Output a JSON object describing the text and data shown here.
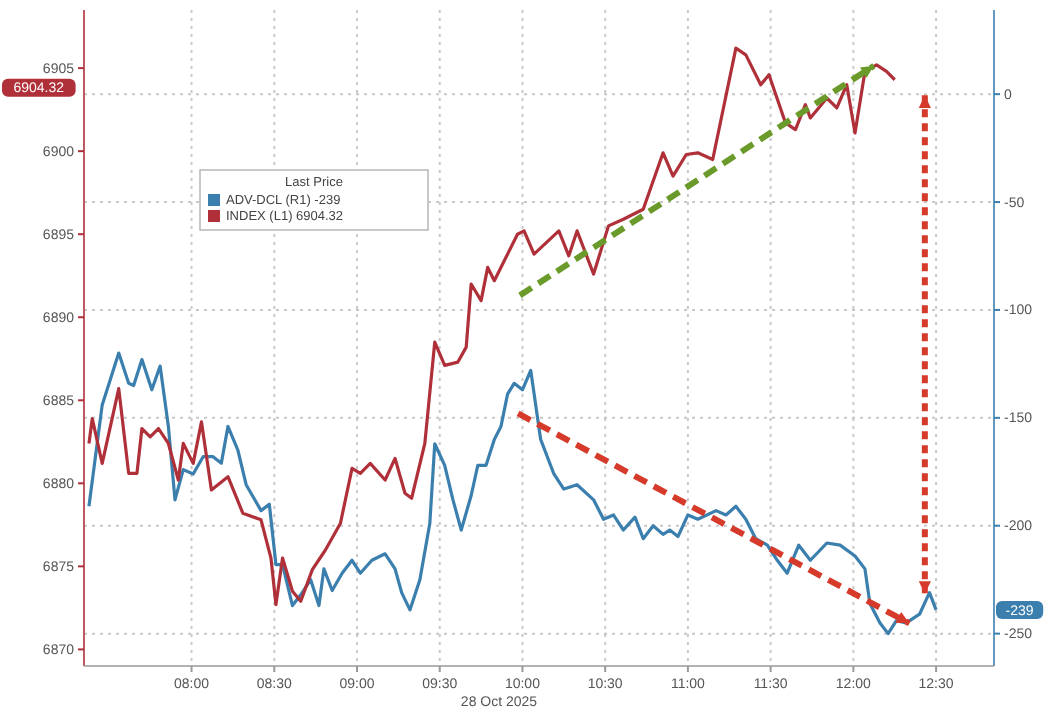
{
  "chart_data": {
    "type": "line",
    "xlabel": "28 Oct 2025",
    "legend_title": "Last Price",
    "legend": "top left",
    "grid": true,
    "xlim": [
      7.35,
      12.85
    ],
    "xticks": [
      {
        "value": 8,
        "label": "08:00"
      },
      {
        "value": 8.5,
        "label": "08:30"
      },
      {
        "value": 9,
        "label": "09:00"
      },
      {
        "value": 9.5,
        "label": "09:30"
      },
      {
        "value": 10,
        "label": "10:00"
      },
      {
        "value": 10.5,
        "label": "10:30"
      },
      {
        "value": 11,
        "label": "11:00"
      },
      {
        "value": 11.5,
        "label": "11:30"
      },
      {
        "value": 12,
        "label": "12:00"
      },
      {
        "value": 12.5,
        "label": "12:30"
      }
    ],
    "ylim": [
      6869,
      6908.5
    ],
    "yticks": [
      6870,
      6875,
      6880,
      6885,
      6890,
      6895,
      6900,
      6905
    ],
    "y2lim": [
      -265,
      39
    ],
    "y2ticks": [
      -250,
      -200,
      -150,
      -100,
      -50,
      0
    ],
    "annotations": [
      "6904.32",
      "-239"
    ],
    "series": [
      {
        "name": "ADV-DCL (R1) -239",
        "color": "#3b7fae",
        "axis": "y2",
        "x": [
          7.38,
          7.46,
          7.56,
          7.62,
          7.65,
          7.7,
          7.76,
          7.81,
          7.86,
          7.9,
          7.95,
          8.01,
          8.07,
          8.13,
          8.18,
          8.22,
          8.28,
          8.33,
          8.42,
          8.47,
          8.51,
          8.55,
          8.61,
          8.66,
          8.72,
          8.77,
          8.8,
          8.85,
          8.91,
          8.97,
          9.02,
          9.09,
          9.17,
          9.23,
          9.27,
          9.32,
          9.38,
          9.44,
          9.47,
          9.53,
          9.58,
          9.63,
          9.69,
          9.73,
          9.78,
          9.83,
          9.87,
          9.91,
          9.95,
          10.0,
          10.05,
          10.11,
          10.19,
          10.25,
          10.33,
          10.43,
          10.49,
          10.55,
          10.61,
          10.68,
          10.73,
          10.79,
          10.85,
          10.89,
          10.94,
          11.0,
          11.06,
          11.17,
          11.23,
          11.29,
          11.35,
          11.41,
          11.48,
          11.54,
          11.6,
          11.67,
          11.74,
          11.84,
          11.92,
          12.01,
          12.07,
          12.1,
          12.16,
          12.21,
          12.26,
          12.32,
          12.4,
          12.46,
          12.5
        ],
        "values": [
          -191,
          -144,
          -120,
          -134,
          -135,
          -123,
          -137,
          -126,
          -154,
          -188,
          -174,
          -176,
          -168,
          -168,
          -171,
          -154,
          -165,
          -181,
          -193,
          -190,
          -218,
          -218,
          -237,
          -232,
          -225,
          -237,
          -220,
          -230,
          -222,
          -216,
          -222,
          -216,
          -213,
          -220,
          -231,
          -239,
          -225,
          -199,
          -162,
          -172,
          -188,
          -202,
          -186,
          -172,
          -172,
          -160,
          -154,
          -139,
          -134,
          -137,
          -128,
          -160,
          -176,
          -183,
          -181,
          -188,
          -197,
          -195,
          -202,
          -196,
          -206,
          -200,
          -204,
          -202,
          -205,
          -195,
          -197,
          -193,
          -195,
          -191,
          -197,
          -206,
          -209,
          -216,
          -222,
          -209,
          -216,
          -208,
          -209,
          -214,
          -220,
          -236,
          -245,
          -250,
          -244,
          -245,
          -241,
          -231,
          -239
        ]
      },
      {
        "name": "INDEX (L1) 6904.32",
        "color": "#b0303a",
        "axis": "y",
        "x": [
          7.38,
          7.4,
          7.46,
          7.56,
          7.62,
          7.67,
          7.7,
          7.75,
          7.8,
          7.86,
          7.92,
          7.95,
          8.01,
          8.06,
          8.12,
          8.22,
          8.31,
          8.42,
          8.48,
          8.51,
          8.55,
          8.61,
          8.66,
          8.73,
          8.81,
          8.9,
          8.97,
          9.02,
          9.08,
          9.17,
          9.23,
          9.29,
          9.33,
          9.41,
          9.47,
          9.53,
          9.61,
          9.66,
          9.69,
          9.75,
          9.79,
          9.83,
          9.97,
          10.01,
          10.07,
          10.22,
          10.28,
          10.33,
          10.43,
          10.52,
          10.61,
          10.73,
          10.85,
          10.91,
          10.99,
          11.06,
          11.15,
          11.29,
          11.35,
          11.44,
          11.49,
          11.59,
          11.65,
          11.71,
          11.74,
          11.84,
          11.9,
          11.96,
          12.01,
          12.07,
          12.14,
          12.2,
          12.25
        ],
        "values": [
          6882.4,
          6883.9,
          6881.2,
          6885.7,
          6880.6,
          6880.6,
          6883.3,
          6882.8,
          6883.3,
          6882.4,
          6880.2,
          6882.4,
          6881.2,
          6883.7,
          6879.6,
          6880.4,
          6878.2,
          6877.8,
          6875.5,
          6872.7,
          6875.5,
          6873.5,
          6872.9,
          6874.8,
          6876,
          6877.6,
          6880.9,
          6880.6,
          6881.2,
          6880.2,
          6881.5,
          6879.4,
          6879.1,
          6882.4,
          6888.5,
          6887.1,
          6887.3,
          6888.2,
          6892,
          6891,
          6893,
          6892.2,
          6895,
          6895.2,
          6893.8,
          6895.2,
          6893.7,
          6895.2,
          6892.6,
          6895.5,
          6895.9,
          6896.5,
          6899.9,
          6898.5,
          6899.8,
          6899.9,
          6899.5,
          6906.2,
          6905.8,
          6904,
          6904.6,
          6901.7,
          6901.3,
          6902.8,
          6902,
          6903.2,
          6902.6,
          6904,
          6901.1,
          6904.8,
          6905.2,
          6904.8,
          6904.3
        ]
      }
    ]
  }
}
